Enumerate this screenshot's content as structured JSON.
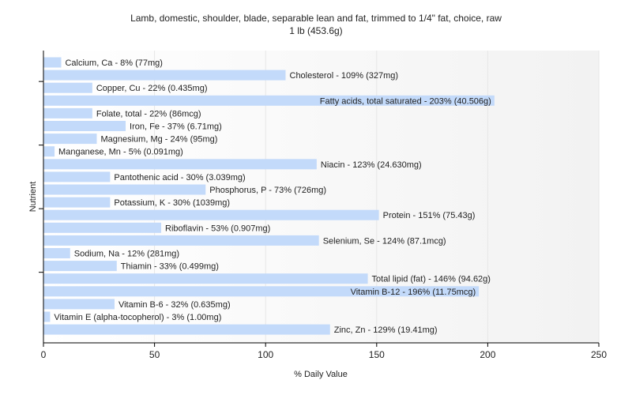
{
  "title": "Lamb, domestic, shoulder, blade, separable lean and fat, trimmed to 1/4\" fat, choice, raw",
  "subtitle": "1 lb (453.6g)",
  "colors": {
    "bar": "#c3dafa",
    "axis": "#000000",
    "grid": "#e6e6e6",
    "background_right": "#f4f4f4"
  },
  "chart_data": {
    "type": "bar",
    "orientation": "horizontal",
    "title": "Lamb, domestic, shoulder, blade, separable lean and fat, trimmed to 1/4\" fat, choice, raw",
    "subtitle": "1 lb (453.6g)",
    "xlabel": "% Daily Value",
    "ylabel": "Nutrient",
    "xlim": [
      0,
      250
    ],
    "xticks": [
      0,
      50,
      100,
      150,
      200,
      250
    ],
    "grid": true,
    "categories": [
      "Calcium, Ca",
      "Cholesterol",
      "Copper, Cu",
      "Fatty acids, total saturated",
      "Folate, total",
      "Iron, Fe",
      "Magnesium, Mg",
      "Manganese, Mn",
      "Niacin",
      "Pantothenic acid",
      "Phosphorus, P",
      "Potassium, K",
      "Protein",
      "Riboflavin",
      "Selenium, Se",
      "Sodium, Na",
      "Thiamin",
      "Total lipid (fat)",
      "Vitamin B-12",
      "Vitamin B-6",
      "Vitamin E (alpha-tocopherol)",
      "Zinc, Zn"
    ],
    "values": [
      8,
      109,
      22,
      203,
      22,
      37,
      24,
      5,
      123,
      30,
      73,
      30,
      151,
      53,
      124,
      12,
      33,
      146,
      196,
      32,
      3,
      129
    ],
    "labels": [
      "Calcium, Ca - 8% (77mg)",
      "Cholesterol - 109% (327mg)",
      "Copper, Cu - 22% (0.435mg)",
      "Fatty acids, total saturated - 203% (40.506g)",
      "Folate, total - 22% (86mcg)",
      "Iron, Fe - 37% (6.71mg)",
      "Magnesium, Mg - 24% (95mg)",
      "Manganese, Mn - 5% (0.091mg)",
      "Niacin - 123% (24.630mg)",
      "Pantothenic acid - 30% (3.039mg)",
      "Phosphorus, P - 73% (726mg)",
      "Potassium, K - 30% (1039mg)",
      "Protein - 151% (75.43g)",
      "Riboflavin - 53% (0.907mg)",
      "Selenium, Se - 124% (87.1mcg)",
      "Sodium, Na - 12% (281mg)",
      "Thiamin - 33% (0.499mg)",
      "Total lipid (fat) - 146% (94.62g)",
      "Vitamin B-12 - 196% (11.75mcg)",
      "Vitamin B-6 - 32% (0.635mg)",
      "Vitamin E (alpha-tocopherol) - 3% (1.00mg)",
      "Zinc, Zn - 129% (19.41mg)"
    ]
  }
}
